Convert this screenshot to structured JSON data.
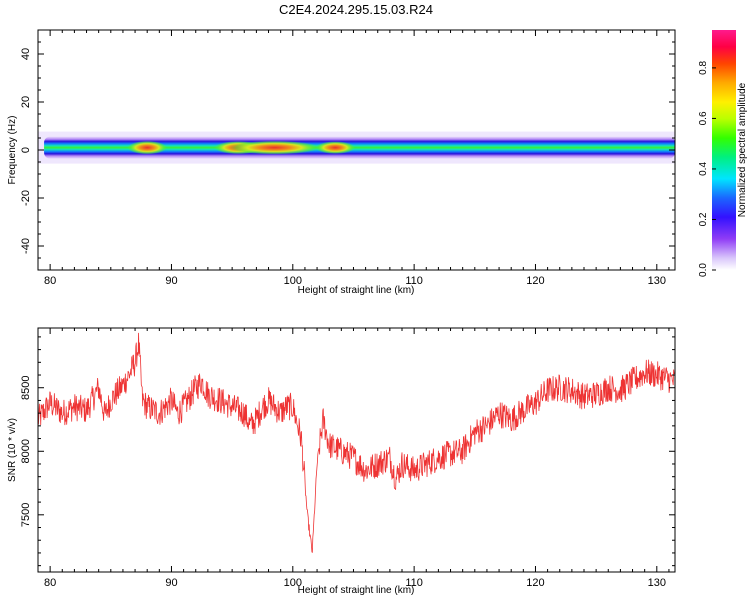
{
  "title": "C2E4.2024.295.15.03.R24",
  "colors": {
    "snr_line": "#ee3333",
    "band_outer": "#c9a8f5",
    "band_edge": "#2a10d8",
    "band_core": "#10e8a0",
    "band_green": "#44ee22",
    "band_red": "#e83a30"
  },
  "chart_data": [
    {
      "type": "heatmap",
      "title": "",
      "xlabel": "Height of straight line (km)",
      "ylabel": "Frequency (Hz)",
      "xlim": [
        79,
        131.5
      ],
      "ylim": [
        -50,
        50
      ],
      "x_ticks": [
        80,
        90,
        100,
        110,
        120,
        130
      ],
      "y_ticks": [
        -40,
        -20,
        0,
        20,
        40
      ],
      "colorbar": {
        "label": "Normalized spectral amplitude",
        "range": [
          0,
          0.95
        ],
        "ticks": [
          0.0,
          0.2,
          0.4,
          0.6,
          0.8
        ]
      },
      "band_center_hz": 1,
      "hot_spots": [
        {
          "x": 88,
          "width": 1.5,
          "amplitude": 0.85
        },
        {
          "x": 95.5,
          "width": 2,
          "amplitude": 0.75
        },
        {
          "x": 98.5,
          "width": 4.5,
          "amplitude": 0.9
        },
        {
          "x": 103.5,
          "width": 1.5,
          "amplitude": 0.65
        }
      ]
    },
    {
      "type": "line",
      "title": "",
      "xlabel": "Height of straight line (km)",
      "ylabel": "SNR (10 * v/v)",
      "xlim": [
        79,
        131.5
      ],
      "ylim": [
        7050,
        8970
      ],
      "x_ticks": [
        80,
        90,
        100,
        110,
        120,
        130
      ],
      "y_ticks": [
        7500,
        8000,
        8500
      ],
      "series": [
        {
          "x": [
            79,
            80,
            81,
            82,
            83,
            84,
            84.5,
            85,
            86,
            86.5,
            87,
            87.3,
            87.6,
            88,
            89,
            90,
            90.5,
            91,
            92,
            92.5,
            93,
            94,
            95,
            96,
            96.5,
            97,
            97.5,
            98,
            99,
            99.5,
            100,
            100.7,
            101.2,
            101.6,
            102,
            102.5,
            103,
            104,
            105,
            106,
            107,
            108,
            108.5,
            109,
            110,
            111,
            112,
            113,
            114,
            115,
            116,
            117,
            118,
            119,
            120,
            121,
            122,
            123,
            124,
            125,
            126,
            127,
            128,
            129,
            130,
            131.5
          ],
          "y": [
            8250,
            8380,
            8300,
            8350,
            8320,
            8500,
            8280,
            8400,
            8520,
            8600,
            8700,
            8850,
            8400,
            8350,
            8300,
            8400,
            8300,
            8350,
            8500,
            8550,
            8450,
            8400,
            8350,
            8300,
            8200,
            8250,
            8350,
            8400,
            8300,
            8350,
            8350,
            8100,
            7500,
            7200,
            7900,
            8250,
            8050,
            8000,
            7950,
            7850,
            7900,
            7950,
            7780,
            7900,
            7850,
            7900,
            7950,
            7980,
            8000,
            8150,
            8200,
            8300,
            8250,
            8320,
            8380,
            8480,
            8500,
            8480,
            8430,
            8450,
            8500,
            8480,
            8550,
            8620,
            8600,
            8550
          ]
        }
      ]
    }
  ]
}
